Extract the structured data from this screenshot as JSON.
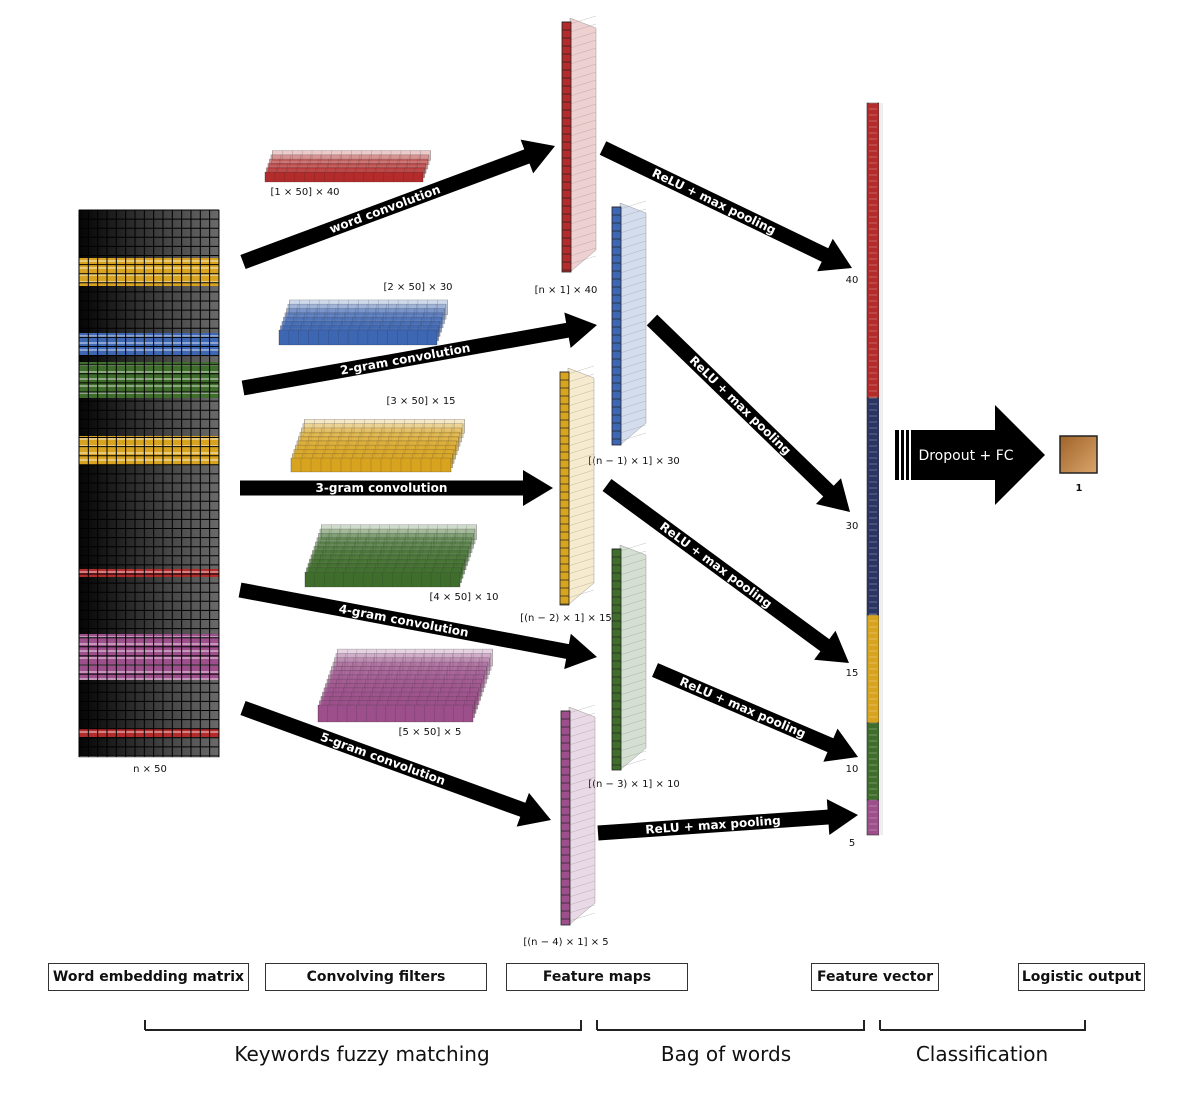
{
  "colors": {
    "red": "#b32b2b",
    "blue": "#3d66b3",
    "yellow": "#d8a420",
    "green": "#3f6e2c",
    "purple": "#9c4f8a",
    "navy": "#2b3563",
    "output": "#b97a3a"
  },
  "embedding": {
    "label": "n × 50"
  },
  "filters": [
    {
      "label": "[1 × 50] × 40",
      "color": "red"
    },
    {
      "label": "[2 × 50] × 30",
      "color": "blue"
    },
    {
      "label": "[3 × 50] × 15",
      "color": "yellow"
    },
    {
      "label": "[4 × 50] × 10",
      "color": "green"
    },
    {
      "label": "[5 × 50] × 5",
      "color": "purple"
    }
  ],
  "conv_arrows": [
    "word convolution",
    "2-gram convolution",
    "3-gram convolution",
    "4-gram convolution",
    "5-gram convolution"
  ],
  "feature_maps": [
    {
      "label": "[n × 1] × 40",
      "color": "red"
    },
    {
      "label": "[(n − 1) × 1] × 30",
      "color": "blue"
    },
    {
      "label": "[(n − 2) × 1] × 15",
      "color": "yellow"
    },
    {
      "label": "[(n − 3) × 1] × 10",
      "color": "green"
    },
    {
      "label": "[(n − 4) × 1] × 5",
      "color": "purple"
    }
  ],
  "pool_arrows": [
    "ReLU + max pooling",
    "ReLU + max pooling",
    "ReLU + max pooling",
    "ReLU + max pooling",
    "ReLU + max pooling"
  ],
  "feature_vector": {
    "ticks": [
      "40",
      "30",
      "15",
      "10",
      "5"
    ]
  },
  "fc_arrow": {
    "label": "Dropout + FC"
  },
  "output": {
    "label": "1"
  },
  "stage_boxes": [
    "Word embedding matrix",
    "Convolving filters",
    "Feature maps",
    "Feature vector",
    "Logistic output"
  ],
  "groups": [
    "Keywords fuzzy matching",
    "Bag of words",
    "Classification"
  ]
}
